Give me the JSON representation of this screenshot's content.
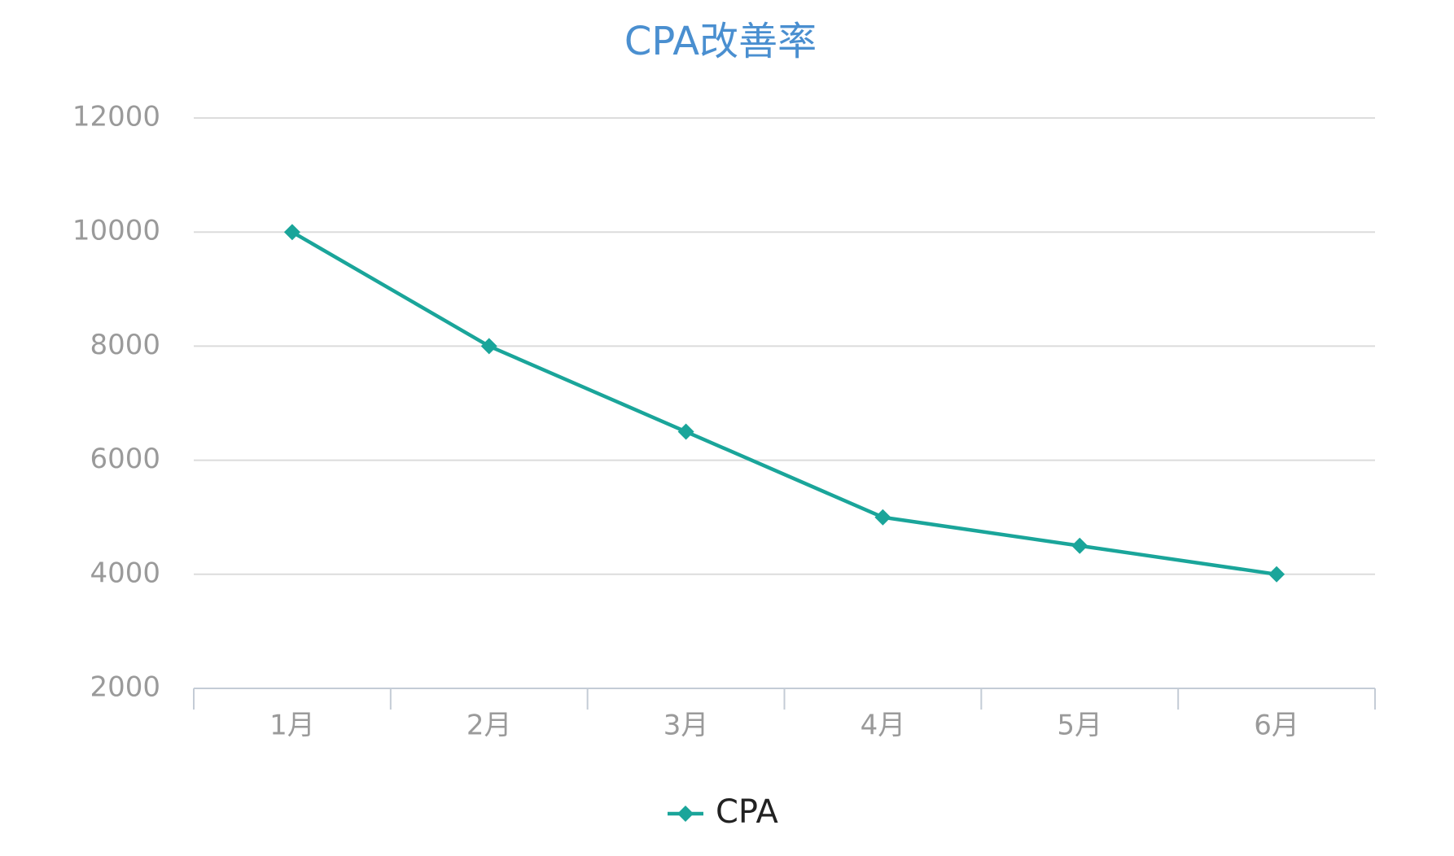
{
  "chart_data": {
    "type": "line",
    "title": "CPA改善率",
    "categories": [
      "1月",
      "2月",
      "3月",
      "4月",
      "5月",
      "6月"
    ],
    "series": [
      {
        "name": "CPA",
        "color": "#1aa59a",
        "values": [
          10000,
          8000,
          6500,
          5000,
          4500,
          4000
        ]
      }
    ],
    "ylim": [
      2000,
      12000
    ],
    "yticks": [
      2000,
      4000,
      6000,
      8000,
      10000,
      12000
    ],
    "grid": true,
    "legend": "bottom"
  }
}
